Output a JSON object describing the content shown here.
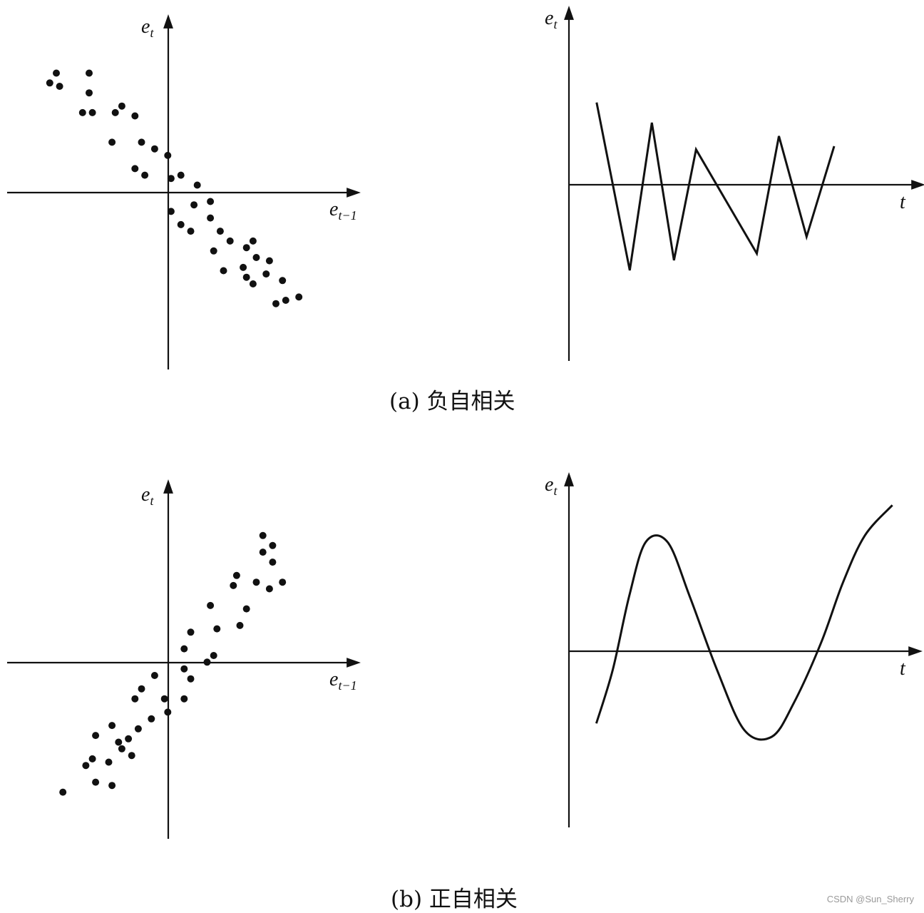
{
  "captions": {
    "a": "(a) 负自相关",
    "b": "(b) 正自相关"
  },
  "watermark": "CSDN @Sun_Sherry",
  "chart_data": [
    {
      "id": "a-scatter",
      "type": "scatter",
      "xlabel": "e_{t-1}",
      "ylabel": "e_t",
      "points": [
        [
          -3.7,
          3.4
        ],
        [
          -3.5,
          3.7
        ],
        [
          -3.4,
          3.3
        ],
        [
          -2.5,
          3.7
        ],
        [
          -2.5,
          3.1
        ],
        [
          -2.7,
          2.5
        ],
        [
          -2.4,
          2.5
        ],
        [
          -1.7,
          2.5
        ],
        [
          -1.5,
          2.7
        ],
        [
          -1.1,
          2.4
        ],
        [
          -1.8,
          1.6
        ],
        [
          -0.9,
          1.6
        ],
        [
          -0.5,
          1.4
        ],
        [
          -0.1,
          1.2
        ],
        [
          -1.1,
          0.8
        ],
        [
          -0.8,
          0.6
        ],
        [
          0.0,
          0.5
        ],
        [
          0.3,
          0.6
        ],
        [
          0.8,
          0.3
        ],
        [
          1.2,
          -0.2
        ],
        [
          0.7,
          -0.3
        ],
        [
          0.0,
          -0.5
        ],
        [
          0.3,
          -0.9
        ],
        [
          0.6,
          -1.1
        ],
        [
          1.2,
          -0.7
        ],
        [
          1.5,
          -1.1
        ],
        [
          1.8,
          -1.4
        ],
        [
          2.3,
          -1.6
        ],
        [
          2.5,
          -1.4
        ],
        [
          1.3,
          -1.7
        ],
        [
          2.6,
          -1.9
        ],
        [
          1.6,
          -2.3
        ],
        [
          2.2,
          -2.2
        ],
        [
          3.0,
          -2.0
        ],
        [
          2.3,
          -2.5
        ],
        [
          2.5,
          -2.7
        ],
        [
          2.9,
          -2.4
        ],
        [
          3.4,
          -2.6
        ],
        [
          3.2,
          -3.3
        ],
        [
          3.5,
          -3.2
        ],
        [
          3.9,
          -3.1
        ]
      ],
      "xlim": [
        -5,
        5.7
      ],
      "ylim": [
        -5.3,
        5.4
      ]
    },
    {
      "id": "a-line",
      "type": "line",
      "xlabel": "t",
      "ylabel": "e_t",
      "x": [
        0.5,
        1.1,
        1.5,
        1.9,
        2.3,
        3.4,
        3.8,
        4.3,
        4.8
      ],
      "y": [
        2.4,
        -2.6,
        1.8,
        -2.3,
        1.0,
        -2.1,
        1.4,
        -1.6,
        1.1
      ],
      "xlim": [
        0,
        6.4
      ],
      "ylim": [
        -5.3,
        5.2
      ]
    },
    {
      "id": "b-scatter",
      "type": "scatter",
      "xlabel": "e_{t-1}",
      "ylabel": "e_t",
      "points": [
        [
          -3.3,
          -3.9
        ],
        [
          -2.6,
          -3.1
        ],
        [
          -2.3,
          -2.2
        ],
        [
          -2.4,
          -2.9
        ],
        [
          -2.3,
          -3.6
        ],
        [
          -1.8,
          -1.9
        ],
        [
          -1.5,
          -2.6
        ],
        [
          -1.9,
          -3.0
        ],
        [
          -1.8,
          -3.7
        ],
        [
          -1.6,
          -2.4
        ],
        [
          -1.3,
          -2.3
        ],
        [
          -1.2,
          -2.8
        ],
        [
          -1.0,
          -2.0
        ],
        [
          -1.1,
          -1.1
        ],
        [
          -0.9,
          -0.8
        ],
        [
          -0.6,
          -1.7
        ],
        [
          -0.5,
          -0.4
        ],
        [
          -0.2,
          -1.1
        ],
        [
          -0.1,
          -1.5
        ],
        [
          0.4,
          0.4
        ],
        [
          0.6,
          0.9
        ],
        [
          0.4,
          -0.2
        ],
        [
          0.6,
          -0.5
        ],
        [
          0.4,
          -1.1
        ],
        [
          1.1,
          0.0
        ],
        [
          1.3,
          0.2
        ],
        [
          1.2,
          1.7
        ],
        [
          1.4,
          1.0
        ],
        [
          2.0,
          2.6
        ],
        [
          1.9,
          2.3
        ],
        [
          2.1,
          1.1
        ],
        [
          2.3,
          1.6
        ],
        [
          2.6,
          2.4
        ],
        [
          2.8,
          3.8
        ],
        [
          2.8,
          3.3
        ],
        [
          3.1,
          3.5
        ],
        [
          3.1,
          3.0
        ],
        [
          3.0,
          2.2
        ],
        [
          3.4,
          2.4
        ]
      ],
      "xlim": [
        -5,
        5.7
      ],
      "ylim": [
        -5.3,
        5.4
      ]
    },
    {
      "id": "b-line",
      "type": "line",
      "xlabel": "t",
      "ylabel": "e_t",
      "x": [
        0.5,
        0.8,
        1.1,
        1.4,
        1.8,
        2.2,
        2.7,
        3.2,
        3.7,
        4.1,
        4.6,
        5.0,
        5.4,
        5.9
      ],
      "y": [
        -2.2,
        -0.6,
        1.6,
        3.2,
        3.2,
        1.6,
        -0.6,
        -2.4,
        -2.6,
        -1.6,
        0.2,
        2.0,
        3.4,
        4.3
      ],
      "xlim": [
        0,
        6.4
      ],
      "ylim": [
        -5.3,
        5.2
      ]
    }
  ]
}
